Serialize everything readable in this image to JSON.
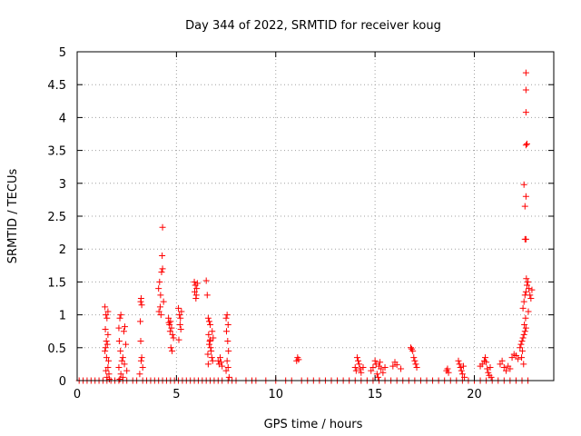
{
  "chart_data": {
    "type": "scatter",
    "title": "Day 344 of 2022, SRMTID for receiver koug",
    "xlabel": "GPS time / hours",
    "ylabel": "SRMTID / TECUs",
    "xlim": [
      0,
      24
    ],
    "ylim": [
      0,
      5
    ],
    "xticks": [
      0,
      5,
      10,
      15,
      20
    ],
    "yticks": [
      0,
      0.5,
      1,
      1.5,
      2,
      2.5,
      3,
      3.5,
      4,
      4.5,
      5
    ],
    "xtick_labels": [
      "0",
      "5",
      "10",
      "15",
      "20"
    ],
    "ytick_labels": [
      "0",
      "0.5",
      "1",
      "1.5",
      "2",
      "2.5",
      "3",
      "3.5",
      "4",
      "4.5",
      "5"
    ],
    "grid": true,
    "marker": "+",
    "marker_color": "#ff0000",
    "series": [
      {
        "name": "SRMTID",
        "points": [
          [
            0.1,
            0
          ],
          [
            0.3,
            0
          ],
          [
            0.5,
            0
          ],
          [
            0.7,
            0
          ],
          [
            0.9,
            0
          ],
          [
            1.1,
            0
          ],
          [
            1.3,
            0
          ],
          [
            1.5,
            0
          ],
          [
            1.7,
            0
          ],
          [
            1.9,
            0
          ],
          [
            2.1,
            0
          ],
          [
            2.3,
            0
          ],
          [
            2.5,
            0
          ],
          [
            2.8,
            0
          ],
          [
            3.0,
            0
          ],
          [
            3.3,
            0
          ],
          [
            3.5,
            0
          ],
          [
            3.7,
            0
          ],
          [
            3.9,
            0
          ],
          [
            4.1,
            0
          ],
          [
            4.3,
            0
          ],
          [
            4.5,
            0
          ],
          [
            4.7,
            0
          ],
          [
            4.9,
            0
          ],
          [
            5.1,
            0
          ],
          [
            5.3,
            0
          ],
          [
            5.5,
            0
          ],
          [
            5.7,
            0
          ],
          [
            5.9,
            0
          ],
          [
            6.1,
            0
          ],
          [
            6.3,
            0
          ],
          [
            6.5,
            0
          ],
          [
            6.7,
            0
          ],
          [
            6.9,
            0
          ],
          [
            7.1,
            0
          ],
          [
            7.3,
            0
          ],
          [
            7.6,
            0
          ],
          [
            7.8,
            0
          ],
          [
            8.0,
            0
          ],
          [
            8.5,
            0
          ],
          [
            8.8,
            0
          ],
          [
            9.0,
            0
          ],
          [
            9.5,
            0
          ],
          [
            10.0,
            0
          ],
          [
            10.5,
            0
          ],
          [
            10.8,
            0
          ],
          [
            11.3,
            0
          ],
          [
            11.6,
            0
          ],
          [
            11.9,
            0
          ],
          [
            12.2,
            0
          ],
          [
            12.5,
            0
          ],
          [
            12.8,
            0
          ],
          [
            13.1,
            0
          ],
          [
            13.4,
            0
          ],
          [
            13.7,
            0
          ],
          [
            14.0,
            0
          ],
          [
            14.3,
            0
          ],
          [
            14.6,
            0
          ],
          [
            14.9,
            0
          ],
          [
            15.2,
            0
          ],
          [
            15.5,
            0
          ],
          [
            15.8,
            0
          ],
          [
            16.1,
            0
          ],
          [
            16.4,
            0
          ],
          [
            16.7,
            0
          ],
          [
            17.0,
            0
          ],
          [
            17.3,
            0
          ],
          [
            17.6,
            0
          ],
          [
            17.9,
            0
          ],
          [
            18.2,
            0
          ],
          [
            18.5,
            0
          ],
          [
            18.8,
            0
          ],
          [
            19.1,
            0
          ],
          [
            19.4,
            0
          ],
          [
            19.7,
            0
          ],
          [
            20.0,
            0
          ],
          [
            20.3,
            0
          ],
          [
            20.6,
            0
          ],
          [
            20.9,
            0
          ],
          [
            21.2,
            0
          ],
          [
            21.5,
            0
          ],
          [
            21.8,
            0
          ],
          [
            22.1,
            0
          ],
          [
            22.4,
            0
          ],
          [
            22.7,
            0
          ],
          [
            1.4,
            1.12
          ],
          [
            1.45,
            1.0
          ],
          [
            1.5,
            0.95
          ],
          [
            1.55,
            1.05
          ],
          [
            1.42,
            0.78
          ],
          [
            1.47,
            0.6
          ],
          [
            1.52,
            0.55
          ],
          [
            1.4,
            0.45
          ],
          [
            1.48,
            0.35
          ],
          [
            1.55,
            0.2
          ],
          [
            1.6,
            0.1
          ],
          [
            1.45,
            0.15
          ],
          [
            1.5,
            0.05
          ],
          [
            1.58,
            0.3
          ],
          [
            1.43,
            0.5
          ],
          [
            1.62,
            0.02
          ],
          [
            1.55,
            0.7
          ],
          [
            2.1,
            0.8
          ],
          [
            2.15,
            0.95
          ],
          [
            2.2,
            1.0
          ],
          [
            2.12,
            0.6
          ],
          [
            2.18,
            0.45
          ],
          [
            2.25,
            0.3
          ],
          [
            2.1,
            0.2
          ],
          [
            2.2,
            0.1
          ],
          [
            2.3,
            0.05
          ],
          [
            2.35,
            0.75
          ],
          [
            2.4,
            0.82
          ],
          [
            2.45,
            0.55
          ],
          [
            2.3,
            0.35
          ],
          [
            2.38,
            0.25
          ],
          [
            2.5,
            0.15
          ],
          [
            2.15,
            0.02
          ],
          [
            3.2,
            1.2
          ],
          [
            3.25,
            1.15
          ],
          [
            3.22,
            1.25
          ],
          [
            3.18,
            0.9
          ],
          [
            3.2,
            0.6
          ],
          [
            3.25,
            0.35
          ],
          [
            3.3,
            0.2
          ],
          [
            3.15,
            0.1
          ],
          [
            3.22,
            0.3
          ],
          [
            4.1,
            1.4
          ],
          [
            4.15,
            1.5
          ],
          [
            4.2,
            1.3
          ],
          [
            4.25,
            1.65
          ],
          [
            4.3,
            1.7
          ],
          [
            4.28,
            1.9
          ],
          [
            4.3,
            2.33
          ],
          [
            4.18,
            1.12
          ],
          [
            4.22,
            1.0
          ],
          [
            4.35,
            1.2
          ],
          [
            4.12,
            1.05
          ],
          [
            4.6,
            0.95
          ],
          [
            4.65,
            0.85
          ],
          [
            4.7,
            0.9
          ],
          [
            4.75,
            0.8
          ],
          [
            4.8,
            0.7
          ],
          [
            4.72,
            0.5
          ],
          [
            4.78,
            0.45
          ],
          [
            4.68,
            0.75
          ],
          [
            4.85,
            0.65
          ],
          [
            4.62,
            0.88
          ],
          [
            5.1,
            1.1
          ],
          [
            5.15,
            1.0
          ],
          [
            5.2,
            0.95
          ],
          [
            5.18,
            0.85
          ],
          [
            5.22,
            0.78
          ],
          [
            5.12,
            0.62
          ],
          [
            5.25,
            1.05
          ],
          [
            5.9,
            1.5
          ],
          [
            5.95,
            1.45
          ],
          [
            6.0,
            1.3
          ],
          [
            5.98,
            1.25
          ],
          [
            6.02,
            1.4
          ],
          [
            5.92,
            1.35
          ],
          [
            6.05,
            1.48
          ],
          [
            6.5,
            1.52
          ],
          [
            6.55,
            1.3
          ],
          [
            6.6,
            0.95
          ],
          [
            6.65,
            0.9
          ],
          [
            6.7,
            0.85
          ],
          [
            6.62,
            0.7
          ],
          [
            6.68,
            0.6
          ],
          [
            6.72,
            0.5
          ],
          [
            6.75,
            0.45
          ],
          [
            6.58,
            0.4
          ],
          [
            6.8,
            0.75
          ],
          [
            6.85,
            0.65
          ],
          [
            6.78,
            0.35
          ],
          [
            6.6,
            0.25
          ],
          [
            6.65,
            0.55
          ],
          [
            6.7,
            0.62
          ],
          [
            6.82,
            0.3
          ],
          [
            7.1,
            0.3
          ],
          [
            7.15,
            0.25
          ],
          [
            7.2,
            0.35
          ],
          [
            7.25,
            0.28
          ],
          [
            7.3,
            0.22
          ],
          [
            7.5,
            0.95
          ],
          [
            7.55,
            1.0
          ],
          [
            7.6,
            0.85
          ],
          [
            7.52,
            0.75
          ],
          [
            7.58,
            0.6
          ],
          [
            7.62,
            0.45
          ],
          [
            7.55,
            0.3
          ],
          [
            7.6,
            0.2
          ],
          [
            7.5,
            0.15
          ],
          [
            7.65,
            0.05
          ],
          [
            11.1,
            0.35
          ],
          [
            11.15,
            0.32
          ],
          [
            11.05,
            0.3
          ],
          [
            14.0,
            0.2
          ],
          [
            14.05,
            0.15
          ],
          [
            14.1,
            0.35
          ],
          [
            14.15,
            0.3
          ],
          [
            14.2,
            0.25
          ],
          [
            14.25,
            0.18
          ],
          [
            14.3,
            0.12
          ],
          [
            14.4,
            0.2
          ],
          [
            14.8,
            0.15
          ],
          [
            14.9,
            0.2
          ],
          [
            15.0,
            0.3
          ],
          [
            15.05,
            0.25
          ],
          [
            15.1,
            0.1
          ],
          [
            15.15,
            0.05
          ],
          [
            15.2,
            0.22
          ],
          [
            15.25,
            0.28
          ],
          [
            15.3,
            0.18
          ],
          [
            15.4,
            0.12
          ],
          [
            15.5,
            0.2
          ],
          [
            15.9,
            0.22
          ],
          [
            16.0,
            0.28
          ],
          [
            16.1,
            0.24
          ],
          [
            16.3,
            0.18
          ],
          [
            16.8,
            0.5
          ],
          [
            16.85,
            0.48
          ],
          [
            16.9,
            0.45
          ],
          [
            16.95,
            0.35
          ],
          [
            17.0,
            0.3
          ],
          [
            17.05,
            0.25
          ],
          [
            17.1,
            0.2
          ],
          [
            18.6,
            0.15
          ],
          [
            18.65,
            0.18
          ],
          [
            18.7,
            0.12
          ],
          [
            19.2,
            0.3
          ],
          [
            19.25,
            0.25
          ],
          [
            19.3,
            0.2
          ],
          [
            19.35,
            0.15
          ],
          [
            19.4,
            0.1
          ],
          [
            19.45,
            0.22
          ],
          [
            19.5,
            0.05
          ],
          [
            20.3,
            0.22
          ],
          [
            20.4,
            0.25
          ],
          [
            20.5,
            0.3
          ],
          [
            20.55,
            0.35
          ],
          [
            20.6,
            0.28
          ],
          [
            20.65,
            0.18
          ],
          [
            20.7,
            0.12
          ],
          [
            20.75,
            0.08
          ],
          [
            20.8,
            0.2
          ],
          [
            20.85,
            0.05
          ],
          [
            21.3,
            0.25
          ],
          [
            21.4,
            0.3
          ],
          [
            21.5,
            0.2
          ],
          [
            21.6,
            0.15
          ],
          [
            21.7,
            0.22
          ],
          [
            21.8,
            0.18
          ],
          [
            21.9,
            0.35
          ],
          [
            22.0,
            0.4
          ],
          [
            22.1,
            0.38
          ],
          [
            22.2,
            0.33
          ],
          [
            22.3,
            0.5
          ],
          [
            22.35,
            0.55
          ],
          [
            22.4,
            0.6
          ],
          [
            22.45,
            0.65
          ],
          [
            22.5,
            0.7
          ],
          [
            22.55,
            0.75
          ],
          [
            22.6,
            0.8
          ],
          [
            22.42,
            0.45
          ],
          [
            22.38,
            0.35
          ],
          [
            22.48,
            0.25
          ],
          [
            22.52,
            0.85
          ],
          [
            22.58,
            0.95
          ],
          [
            22.45,
            1.1
          ],
          [
            22.5,
            1.2
          ],
          [
            22.55,
            1.3
          ],
          [
            22.6,
            1.35
          ],
          [
            22.65,
            1.45
          ],
          [
            22.7,
            1.5
          ],
          [
            22.75,
            1.4
          ],
          [
            22.8,
            1.3
          ],
          [
            22.85,
            1.25
          ],
          [
            22.9,
            1.38
          ],
          [
            22.62,
            1.55
          ],
          [
            22.72,
            1.05
          ],
          [
            22.55,
            2.15
          ],
          [
            22.6,
            2.15
          ],
          [
            22.55,
            2.65
          ],
          [
            22.6,
            2.8
          ],
          [
            22.5,
            2.98
          ],
          [
            22.6,
            3.58
          ],
          [
            22.65,
            3.6
          ],
          [
            22.6,
            4.08
          ],
          [
            22.6,
            4.42
          ],
          [
            22.6,
            4.68
          ]
        ]
      }
    ]
  }
}
